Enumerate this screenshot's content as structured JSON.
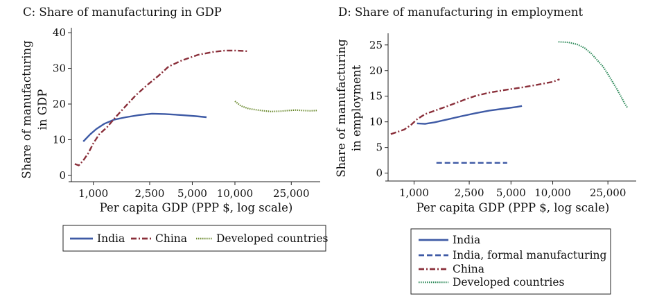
{
  "chart_data": [
    {
      "type": "line",
      "title": "C: Share of manufacturing in GDP",
      "xlabel": "Per capita GDP (PPP $, log scale)",
      "ylabel": [
        "Share of manufacturing",
        "in GDP"
      ],
      "x_scale": "log",
      "xlim": [
        700,
        40000
      ],
      "ylim": [
        -1,
        41
      ],
      "x_ticks": [
        1000,
        2500,
        5000,
        10000,
        25000
      ],
      "x_tick_labels": [
        "1,000",
        "2,500",
        "5,000",
        "10,000",
        "25,000"
      ],
      "y_ticks": [
        0,
        10,
        20,
        30,
        40
      ],
      "y_tick_labels": [
        "0",
        "10",
        "20",
        "30",
        "40"
      ],
      "grid": false,
      "legend_position": "bottom",
      "series": [
        {
          "name": "India",
          "style": "solid",
          "color": "#3e5aa5",
          "points": [
            [
              850,
              9.5
            ],
            [
              950,
              11.5
            ],
            [
              1050,
              13
            ],
            [
              1200,
              14.5
            ],
            [
              1400,
              15.6
            ],
            [
              1700,
              16.3
            ],
            [
              2100,
              16.9
            ],
            [
              2600,
              17.3
            ],
            [
              3200,
              17.2
            ],
            [
              4200,
              16.9
            ],
            [
              5300,
              16.6
            ],
            [
              6300,
              16.3
            ]
          ]
        },
        {
          "name": "China",
          "style": "dashdot",
          "color": "#8a2f3a",
          "points": [
            [
              740,
              3.2
            ],
            [
              790,
              2.8
            ],
            [
              850,
              4.2
            ],
            [
              920,
              6.2
            ],
            [
              1000,
              9
            ],
            [
              1100,
              11.5
            ],
            [
              1250,
              13.5
            ],
            [
              1450,
              16.5
            ],
            [
              1700,
              19.5
            ],
            [
              2000,
              22.5
            ],
            [
              2400,
              25.3
            ],
            [
              2900,
              28
            ],
            [
              3400,
              30.5
            ],
            [
              4200,
              32.2
            ],
            [
              5500,
              33.8
            ],
            [
              7000,
              34.6
            ],
            [
              8500,
              35
            ],
            [
              10000,
              35
            ],
            [
              11500,
              34.9
            ],
            [
              12300,
              34.8
            ]
          ]
        },
        {
          "name": "Developed countries",
          "style": "dotted",
          "color": "#6b8a2e",
          "points": [
            [
              10000,
              20.8
            ],
            [
              11000,
              19.5
            ],
            [
              12500,
              18.7
            ],
            [
              14000,
              18.4
            ],
            [
              16000,
              18.1
            ],
            [
              18000,
              17.9
            ],
            [
              21000,
              18
            ],
            [
              24000,
              18.2
            ],
            [
              27000,
              18.3
            ],
            [
              30000,
              18.2
            ],
            [
              34000,
              18.1
            ],
            [
              38000,
              18.2
            ]
          ]
        }
      ],
      "legend": [
        "India",
        "China",
        "Developed countries"
      ]
    },
    {
      "type": "line",
      "title": "D: Share of manufacturing in employment",
      "xlabel": "Per capita GDP (PPP $, log scale)",
      "ylabel": [
        "Share of manufacturing",
        "in employment"
      ],
      "x_scale": "log",
      "xlim": [
        650,
        40000
      ],
      "ylim": [
        -1,
        27
      ],
      "x_ticks": [
        1000,
        2500,
        5000,
        10000,
        25000
      ],
      "x_tick_labels": [
        "1,000",
        "2,500",
        "5,000",
        "10,000",
        "25,000"
      ],
      "y_ticks": [
        0,
        5,
        10,
        15,
        20,
        25
      ],
      "y_tick_labels": [
        "0",
        "5",
        "10",
        "15",
        "20",
        "25"
      ],
      "grid": false,
      "legend_position": "bottom-right",
      "series": [
        {
          "name": "India",
          "style": "solid",
          "color": "#3e5aa5",
          "points": [
            [
              1050,
              9.7
            ],
            [
              1200,
              9.6
            ],
            [
              1400,
              9.9
            ],
            [
              1700,
              10.4
            ],
            [
              2200,
              11.1
            ],
            [
              2800,
              11.7
            ],
            [
              3500,
              12.2
            ],
            [
              4500,
              12.6
            ],
            [
              5500,
              12.9
            ],
            [
              6000,
              13.1
            ]
          ]
        },
        {
          "name": "India, formal manufacturing",
          "style": "dashed",
          "color": "#3e5aa5",
          "points": [
            [
              1450,
              2
            ],
            [
              4700,
              2
            ]
          ]
        },
        {
          "name": "China",
          "style": "dashdot",
          "color": "#8a2f3a",
          "points": [
            [
              680,
              7.6
            ],
            [
              750,
              8
            ],
            [
              850,
              8.5
            ],
            [
              950,
              9.4
            ],
            [
              1050,
              10.5
            ],
            [
              1200,
              11.5
            ],
            [
              1450,
              12.3
            ],
            [
              1800,
              13.2
            ],
            [
              2300,
              14.3
            ],
            [
              2800,
              15.1
            ],
            [
              3500,
              15.7
            ],
            [
              4500,
              16.2
            ],
            [
              6000,
              16.7
            ],
            [
              8000,
              17.3
            ],
            [
              10000,
              17.8
            ],
            [
              11200,
              18.3
            ]
          ]
        },
        {
          "name": "Developed countries",
          "style": "dotted",
          "color": "#2e8a5a",
          "points": [
            [
              11000,
              25.6
            ],
            [
              13000,
              25.5
            ],
            [
              15000,
              25.1
            ],
            [
              17000,
              24.4
            ],
            [
              19000,
              23.3
            ],
            [
              21000,
              22
            ],
            [
              23000,
              20.8
            ],
            [
              25000,
              19.3
            ],
            [
              27000,
              17.8
            ],
            [
              29000,
              16.4
            ],
            [
              31000,
              15
            ],
            [
              33000,
              13.6
            ],
            [
              34500,
              12.8
            ]
          ]
        }
      ],
      "legend": [
        "India",
        "India, formal manufacturing",
        "China",
        "Developed countries"
      ]
    }
  ]
}
